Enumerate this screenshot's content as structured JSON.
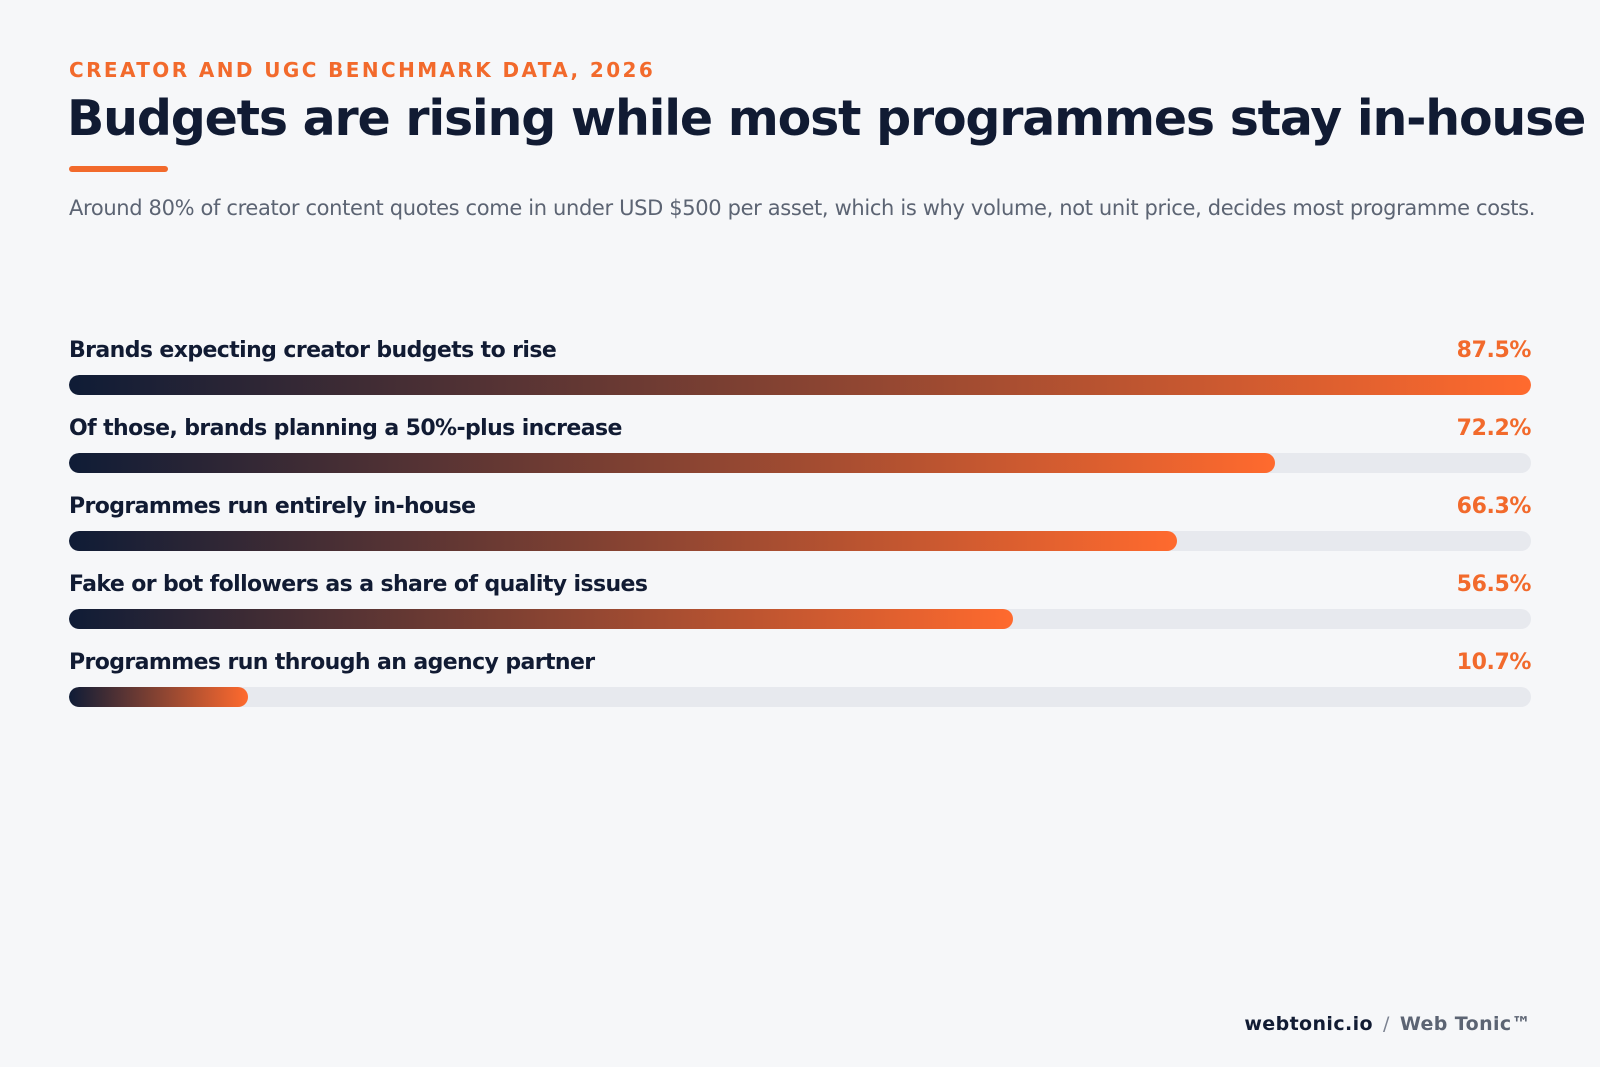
{
  "header": {
    "eyebrow": "CREATOR AND UGC BENCHMARK DATA, 2026",
    "title": "Budgets are rising while most programmes stay in-house",
    "subtitle": "Around 80% of creator content quotes come in under USD $500 per asset, which is why volume, not unit price, decides most programme costs."
  },
  "colors": {
    "accent": "#f26a2c",
    "bar_start": "#0f1c36",
    "bar_end": "#ff6a2e",
    "track": "#e7e9ee",
    "heading": "#111b33"
  },
  "chart_data": {
    "type": "bar",
    "orientation": "horizontal",
    "xlim": [
      0,
      87.5
    ],
    "unit": "%",
    "categories": [
      "Brands expecting creator budgets to rise",
      "Of those, brands planning a 50%-plus increase",
      "Programmes run entirely in-house",
      "Fake or bot followers as a share of quality issues",
      "Programmes run through an agency partner"
    ],
    "values": [
      87.5,
      72.2,
      66.3,
      56.5,
      10.7
    ],
    "value_labels": [
      "87.5%",
      "72.2%",
      "66.3%",
      "56.5%",
      "10.7%"
    ]
  },
  "footer": {
    "domain": "webtonic.io",
    "separator": "/",
    "brand": "Web Tonic™"
  }
}
